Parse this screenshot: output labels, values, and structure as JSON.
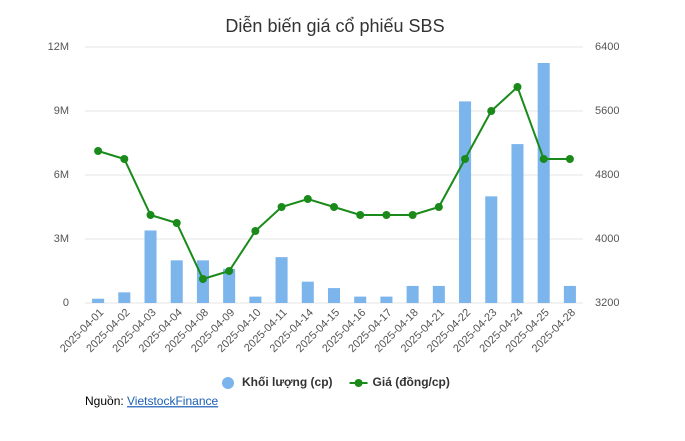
{
  "chart_data": {
    "type": "bar",
    "title": "Diễn biến giá cổ phiếu SBS",
    "categories": [
      "2025-04-01",
      "2025-04-02",
      "2025-04-03",
      "2025-04-04",
      "2025-04-08",
      "2025-04-09",
      "2025-04-10",
      "2025-04-11",
      "2025-04-14",
      "2025-04-15",
      "2025-04-16",
      "2025-04-17",
      "2025-04-18",
      "2025-04-21",
      "2025-04-22",
      "2025-04-23",
      "2025-04-24",
      "2025-04-25",
      "2025-04-28"
    ],
    "series": [
      {
        "name": "Khối lượng (cp)",
        "type": "bar",
        "color": "#7cb5ec",
        "values": [
          200000,
          500000,
          3400000,
          2000000,
          2000000,
          1600000,
          300000,
          2150000,
          1000000,
          700000,
          300000,
          300000,
          800000,
          800000,
          9450000,
          5000000,
          7450000,
          11250000,
          800000
        ]
      },
      {
        "name": "Giá (đồng/cp)",
        "type": "line",
        "axis": "y2",
        "color": "#1a8a1a",
        "values": [
          5100,
          5000,
          4300,
          4200,
          3500,
          3600,
          4100,
          4400,
          4500,
          4400,
          4300,
          4300,
          4300,
          4400,
          5000,
          5600,
          5900,
          5000,
          5000
        ]
      }
    ],
    "ylim": [
      0,
      12000000
    ],
    "yticks": [
      0,
      {
        "value": 3000000,
        "label": "3M"
      },
      {
        "value": 6000000,
        "label": "6M"
      },
      {
        "value": 9000000,
        "label": "9M"
      },
      {
        "value": 12000000,
        "label": "12M"
      }
    ],
    "y2lim": [
      3200,
      6400
    ],
    "y2ticks": [
      3200,
      4000,
      4800,
      5600,
      6400
    ],
    "grid": true,
    "legend": "bottom",
    "source_label": "Nguồn:",
    "source_link": "VietstockFinance"
  }
}
